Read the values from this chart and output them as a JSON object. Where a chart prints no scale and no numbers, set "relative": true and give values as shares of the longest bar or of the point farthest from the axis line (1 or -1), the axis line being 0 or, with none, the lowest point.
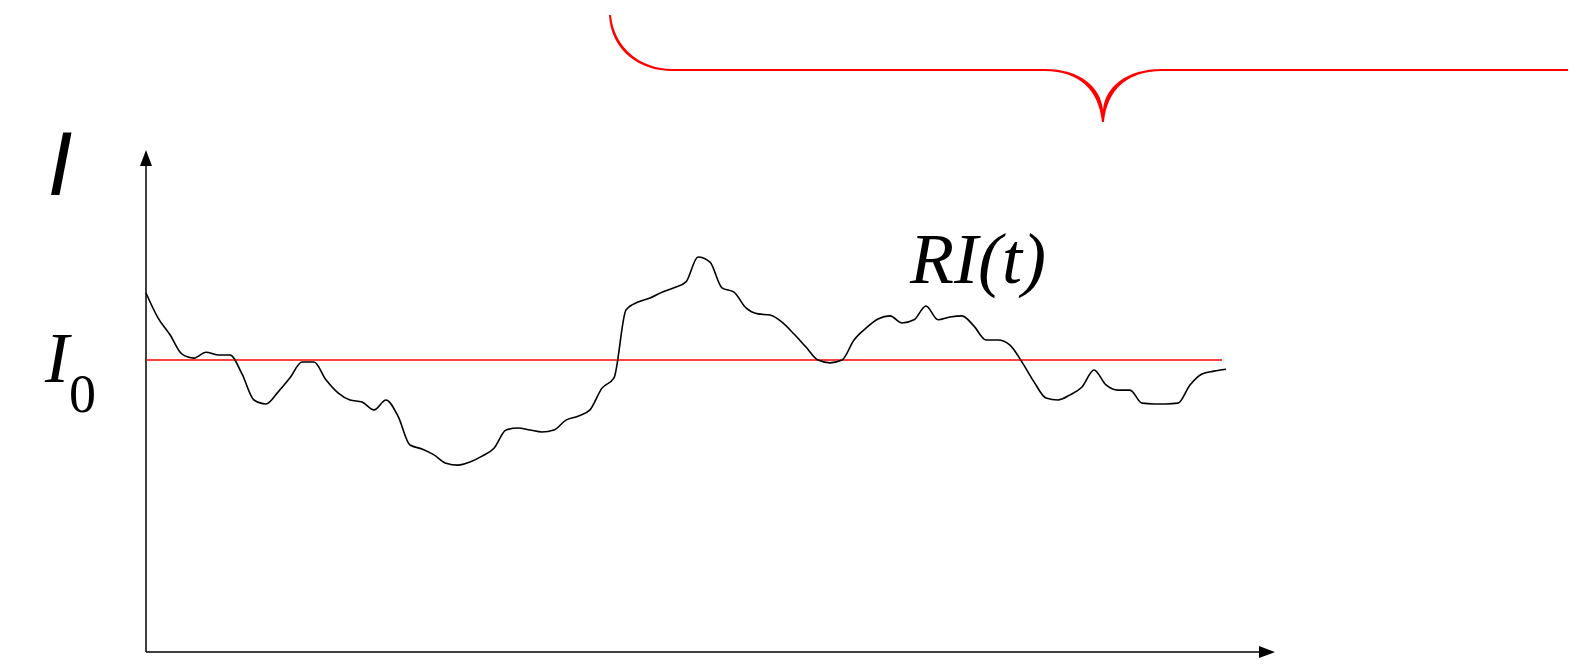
{
  "chart_data": {
    "type": "line",
    "relative": true,
    "ylabel": "I",
    "categories": [
      null,
      null,
      null,
      null,
      null,
      null,
      null,
      null,
      null,
      null,
      null,
      null,
      null,
      null,
      null,
      null,
      null,
      null,
      null,
      null,
      null,
      null,
      null,
      null,
      null,
      null,
      null,
      null,
      null,
      null,
      null,
      null,
      null,
      null,
      null,
      null,
      null,
      null,
      null,
      null,
      null,
      null,
      null,
      null,
      null,
      null,
      null,
      null,
      null,
      null,
      null,
      null,
      null,
      null,
      null,
      null,
      null,
      null,
      null,
      null,
      null,
      null,
      null,
      null,
      null,
      null,
      null,
      null,
      null,
      null,
      null,
      null,
      null,
      null,
      null,
      null,
      null,
      null,
      null,
      null,
      null,
      null,
      null,
      null,
      null,
      null,
      null,
      null,
      null,
      null,
      null
    ],
    "series": [
      {
        "name": "RI(t)",
        "color": "#000000",
        "values": [
          0.909,
          0.846,
          0.803,
          0.754,
          0.744,
          0.759,
          0.752,
          0.752,
          0.704,
          0.638,
          0.628,
          0.658,
          0.694,
          0.734,
          0.734,
          0.689,
          0.656,
          0.638,
          0.633,
          0.613,
          0.638,
          0.597,
          0.524,
          0.514,
          0.499,
          0.478,
          0.473,
          0.481,
          0.496,
          0.516,
          0.562,
          0.567,
          0.562,
          0.557,
          0.562,
          0.587,
          0.597,
          0.613,
          0.668,
          0.694,
          0.866,
          0.886,
          0.896,
          0.911,
          0.922,
          0.937,
          1,
          0.987,
          0.922,
          0.911,
          0.871,
          0.856,
          0.853,
          0.835,
          0.805,
          0.772,
          0.739,
          0.732,
          0.739,
          0.79,
          0.82,
          0.843,
          0.851,
          0.833,
          0.841,
          0.876,
          0.841,
          0.848,
          0.851,
          0.825,
          0.79,
          0.79,
          0.777,
          0.734,
          0.684,
          0.643,
          0.638,
          0.651,
          0.671,
          0.714,
          0.676,
          0.663,
          0.663,
          0.63,
          0.628,
          0.628,
          0.63,
          0.676,
          0.704,
          0.711,
          0.716
        ]
      }
    ],
    "ref_lines": [
      {
        "axis": "y",
        "value": 0.739,
        "label": "I$_{0}$",
        "color": "#ff0000"
      }
    ]
  }
}
